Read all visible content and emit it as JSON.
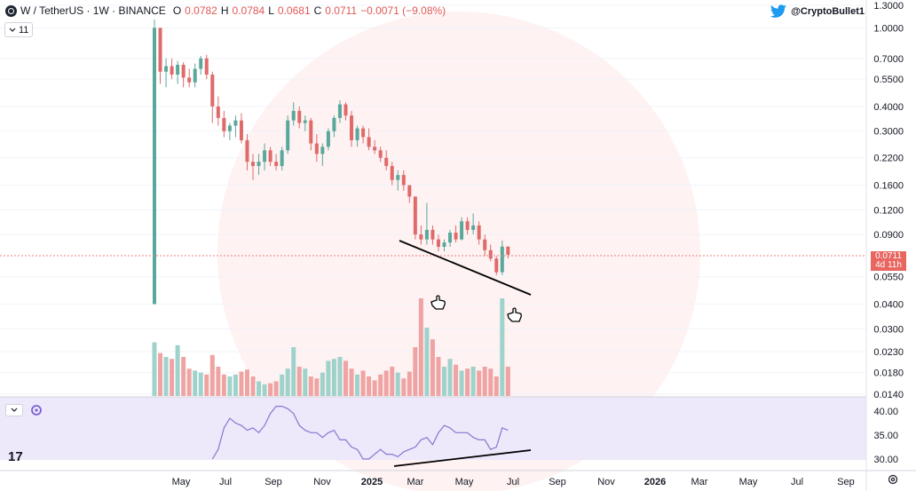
{
  "header": {
    "symbol": "W / TetherUS · 1W · BINANCE",
    "o_label": "O",
    "o_value": "0.0782",
    "h_label": "H",
    "h_value": "0.0784",
    "l_label": "L",
    "l_value": "0.0681",
    "c_label": "C",
    "c_value": "0.0711",
    "change": "−0.0071 (−9.08%)"
  },
  "interval_badge": "11",
  "twitter_handle": "@CryptoBullet1",
  "price_tag": {
    "price": "0.0711",
    "countdown": "4d 11h"
  },
  "tv_logo": "17",
  "colors": {
    "up": "#5aa89b",
    "down": "#e06a6a",
    "vol_up": "#9fd2cb",
    "vol_down": "#f0a3a3",
    "rsi": "#8b76cf",
    "rsi_band": "#ede8fa",
    "price_line": "#e88080"
  },
  "icons": {
    "collapse": "chevron-down-icon",
    "sync": "sync-icon",
    "twitter": "twitter-bird-icon",
    "settings": "gear-icon",
    "hand_pointers": "hand-pointer-icon"
  },
  "chart_data": {
    "type": "candlestick",
    "scale": "log",
    "price_axis_ticks": [
      "1.3000",
      "1.0000",
      "0.7000",
      "0.5500",
      "0.4000",
      "0.3000",
      "0.2200",
      "0.1600",
      "0.1200",
      "0.0900",
      "0.0711",
      "0.0550",
      "0.0400",
      "0.0300",
      "0.0230",
      "0.0180",
      "0.0140"
    ],
    "rsi_axis_ticks": [
      "40.00",
      "35.00",
      "30.00"
    ],
    "x_ticks": [
      "May",
      "Jul",
      "Sep",
      "Nov",
      "2025",
      "Mar",
      "May",
      "Jul",
      "Sep",
      "Nov",
      "2026",
      "Mar",
      "May",
      "Jul",
      "Sep"
    ],
    "ohlc": [
      [
        0.04,
        1.1,
        0.05,
        1.0
      ],
      [
        1.0,
        1.0,
        0.52,
        0.6
      ],
      [
        0.6,
        0.7,
        0.5,
        0.64
      ],
      [
        0.64,
        0.7,
        0.55,
        0.58
      ],
      [
        0.58,
        0.68,
        0.52,
        0.65
      ],
      [
        0.65,
        0.67,
        0.5,
        0.56
      ],
      [
        0.56,
        0.62,
        0.5,
        0.53
      ],
      [
        0.53,
        0.66,
        0.5,
        0.62
      ],
      [
        0.62,
        0.72,
        0.58,
        0.7
      ],
      [
        0.7,
        0.73,
        0.55,
        0.58
      ],
      [
        0.58,
        0.6,
        0.33,
        0.4
      ],
      [
        0.4,
        0.45,
        0.32,
        0.35
      ],
      [
        0.35,
        0.38,
        0.28,
        0.3
      ],
      [
        0.3,
        0.33,
        0.27,
        0.32
      ],
      [
        0.32,
        0.36,
        0.28,
        0.34
      ],
      [
        0.34,
        0.37,
        0.26,
        0.27
      ],
      [
        0.27,
        0.29,
        0.19,
        0.21
      ],
      [
        0.21,
        0.23,
        0.17,
        0.2
      ],
      [
        0.2,
        0.23,
        0.18,
        0.21
      ],
      [
        0.21,
        0.26,
        0.19,
        0.24
      ],
      [
        0.24,
        0.25,
        0.2,
        0.21
      ],
      [
        0.21,
        0.23,
        0.19,
        0.2
      ],
      [
        0.2,
        0.25,
        0.19,
        0.24
      ],
      [
        0.24,
        0.36,
        0.23,
        0.34
      ],
      [
        0.34,
        0.42,
        0.32,
        0.38
      ],
      [
        0.38,
        0.4,
        0.31,
        0.33
      ],
      [
        0.33,
        0.36,
        0.3,
        0.34
      ],
      [
        0.34,
        0.35,
        0.24,
        0.26
      ],
      [
        0.26,
        0.29,
        0.21,
        0.23
      ],
      [
        0.23,
        0.26,
        0.2,
        0.25
      ],
      [
        0.25,
        0.31,
        0.24,
        0.3
      ],
      [
        0.3,
        0.36,
        0.28,
        0.35
      ],
      [
        0.35,
        0.43,
        0.33,
        0.41
      ],
      [
        0.41,
        0.42,
        0.34,
        0.36
      ],
      [
        0.36,
        0.38,
        0.25,
        0.27
      ],
      [
        0.27,
        0.32,
        0.25,
        0.31
      ],
      [
        0.31,
        0.32,
        0.26,
        0.28
      ],
      [
        0.28,
        0.31,
        0.24,
        0.25
      ],
      [
        0.25,
        0.27,
        0.23,
        0.24
      ],
      [
        0.24,
        0.25,
        0.21,
        0.22
      ],
      [
        0.22,
        0.24,
        0.19,
        0.2
      ],
      [
        0.2,
        0.21,
        0.16,
        0.17
      ],
      [
        0.17,
        0.19,
        0.15,
        0.18
      ],
      [
        0.18,
        0.19,
        0.15,
        0.16
      ],
      [
        0.16,
        0.16,
        0.13,
        0.14
      ],
      [
        0.14,
        0.14,
        0.085,
        0.09
      ],
      [
        0.09,
        0.1,
        0.08,
        0.085
      ],
      [
        0.085,
        0.13,
        0.08,
        0.095
      ],
      [
        0.095,
        0.1,
        0.08,
        0.085
      ],
      [
        0.085,
        0.09,
        0.074,
        0.078
      ],
      [
        0.078,
        0.085,
        0.074,
        0.082
      ],
      [
        0.082,
        0.095,
        0.078,
        0.092
      ],
      [
        0.092,
        0.1,
        0.082,
        0.085
      ],
      [
        0.085,
        0.11,
        0.084,
        0.105
      ],
      [
        0.105,
        0.11,
        0.09,
        0.095
      ],
      [
        0.095,
        0.115,
        0.09,
        0.1
      ],
      [
        0.1,
        0.105,
        0.08,
        0.085
      ],
      [
        0.085,
        0.09,
        0.07,
        0.075
      ],
      [
        0.075,
        0.08,
        0.066,
        0.068
      ],
      [
        0.068,
        0.07,
        0.056,
        0.058
      ],
      [
        0.058,
        0.084,
        0.056,
        0.0782
      ],
      [
        0.0782,
        0.0784,
        0.0681,
        0.0711
      ]
    ],
    "volume": [
      55,
      44,
      40,
      38,
      52,
      40,
      28,
      26,
      24,
      22,
      42,
      30,
      22,
      20,
      22,
      25,
      27,
      20,
      15,
      12,
      13,
      15,
      22,
      28,
      50,
      30,
      28,
      20,
      18,
      24,
      36,
      38,
      40,
      36,
      28,
      22,
      26,
      20,
      16,
      22,
      26,
      30,
      24,
      18,
      25,
      50,
      100,
      70,
      58,
      40,
      30,
      38,
      32,
      26,
      28,
      30,
      26,
      30,
      28,
      20,
      100,
      30
    ],
    "rsi": [
      30,
      32,
      36.5,
      38.5,
      37.5,
      37,
      36,
      36.5,
      35.5,
      37,
      39.5,
      41,
      41,
      40.5,
      39.5,
      37,
      36,
      35.5,
      35.5,
      34.5,
      35.5,
      36,
      34,
      34,
      32.5,
      32,
      30,
      30,
      31,
      32,
      31,
      31,
      30.5,
      31.5,
      32,
      32.5,
      34,
      34.5,
      33,
      35.5,
      37,
      36.5,
      35.5,
      35.5,
      35.5,
      34.5,
      34,
      34,
      32,
      32.5,
      36.5,
      36
    ],
    "trendline_price": [
      [
        0.088,
        0.05
      ]
    ],
    "trendline_rsi": [
      [
        30.3,
        31.8
      ]
    ]
  }
}
